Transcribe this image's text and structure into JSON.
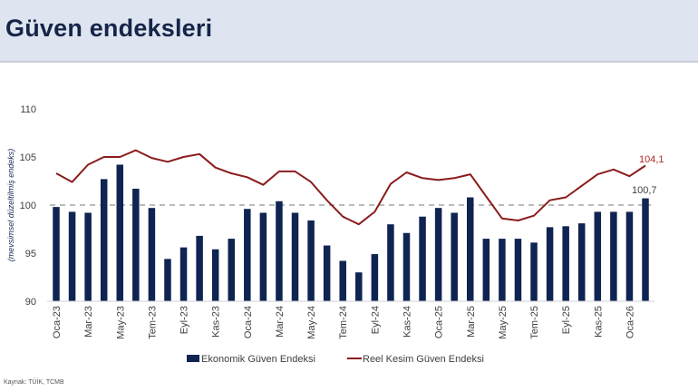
{
  "header": {
    "title": "Güven endeksleri"
  },
  "source": "Kaynak: TÜİK, TCMB",
  "colors": {
    "bar": "#0f2452",
    "line": "#8b1c1c",
    "reference": "#a6a6a6",
    "header_bg": "#dfe5f0",
    "title": "#152549"
  },
  "chart_data": {
    "type": "bar+line",
    "title": "Güven endeksleri",
    "xlabel": "",
    "ylabel": "(mevsimsel düzeltilmiş endeks)",
    "ylim": [
      90,
      110
    ],
    "yticks": [
      90,
      95,
      100,
      105,
      110
    ],
    "grid": false,
    "reference_line": 100,
    "legend_position": "bottom",
    "categories": [
      "Oca-23",
      "Şub-23",
      "Mar-23",
      "Nis-23",
      "May-23",
      "Haz-23",
      "Tem-23",
      "Ağu-23",
      "Eyl-23",
      "Eki-23",
      "Kas-23",
      "Ara-23",
      "Oca-24",
      "Şub-24",
      "Mar-24",
      "Nis-24",
      "May-24",
      "Haz-24",
      "Tem-24",
      "Ağu-24",
      "Eyl-24",
      "Eki-24",
      "Kas-24",
      "Ara-24",
      "Oca-25",
      "Şub-25",
      "Mar-25",
      "Nis-25",
      "May-25",
      "Haz-25",
      "Tem-25",
      "Ağu-25",
      "Eyl-25",
      "Eki-25",
      "Kas-25",
      "Ara-25",
      "Oca-26",
      "Şub-26"
    ],
    "tick_labels": [
      "Oca-23",
      "Mar-23",
      "May-23",
      "Tem-23",
      "Eyl-23",
      "Kas-23",
      "Oca-24",
      "Mar-24",
      "May-24",
      "Tem-24",
      "Eyl-24",
      "Kas-24",
      "Oca-25",
      "Mar-25",
      "May-25",
      "Tem-25",
      "Eyl-25",
      "Kas-25",
      "Oca-26"
    ],
    "series": [
      {
        "name": "Ekonomik Güven Endeksi",
        "type": "bar",
        "values": [
          99.8,
          99.3,
          99.2,
          102.7,
          104.2,
          101.7,
          99.7,
          94.4,
          95.6,
          96.8,
          95.4,
          96.5,
          99.6,
          99.2,
          100.4,
          99.2,
          98.4,
          95.8,
          94.2,
          93.0,
          94.9,
          98.0,
          97.1,
          98.8,
          99.7,
          99.2,
          100.8,
          96.5,
          96.5,
          96.5,
          96.1,
          97.7,
          97.8,
          98.1,
          99.3,
          99.3,
          99.3,
          100.7
        ]
      },
      {
        "name": "Reel Kesim Güven Endeksi",
        "type": "line",
        "values": [
          103.3,
          102.4,
          104.2,
          105.0,
          105.0,
          105.7,
          104.9,
          104.5,
          105.0,
          105.3,
          103.9,
          103.3,
          102.9,
          102.1,
          103.5,
          103.5,
          102.4,
          100.5,
          98.8,
          98.0,
          99.3,
          102.2,
          103.4,
          102.8,
          102.6,
          102.8,
          103.2,
          100.9,
          98.6,
          98.4,
          98.9,
          100.5,
          100.8,
          102.0,
          103.2,
          103.7,
          103.0,
          104.1
        ]
      }
    ],
    "annotations": [
      {
        "series": "Reel Kesim Güven Endeksi",
        "text": "104,1"
      },
      {
        "series": "Ekonomik Güven Endeksi",
        "text": "100,7"
      }
    ]
  }
}
